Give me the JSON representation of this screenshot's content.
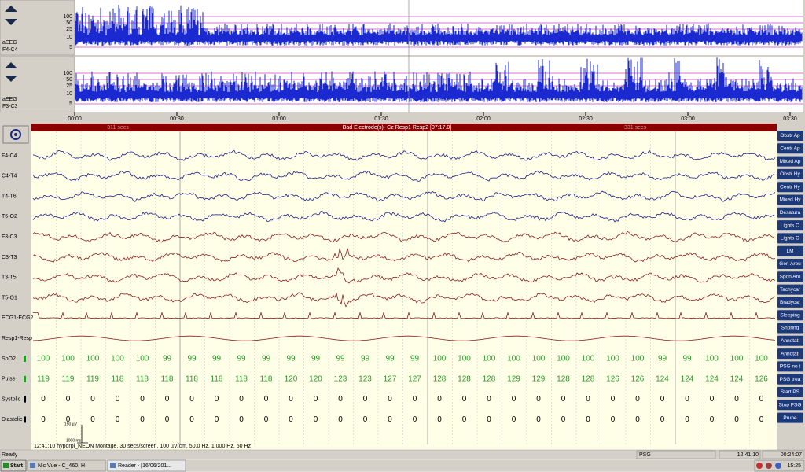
{
  "aeeg": [
    {
      "label": "aEEG",
      "channel": "F4-C4",
      "scale": [
        100,
        50,
        25,
        10,
        5
      ]
    },
    {
      "label": "aEEG",
      "channel": "F3-C3",
      "scale": [
        100,
        50,
        25,
        10,
        5
      ]
    }
  ],
  "time_axis": [
    "00:00",
    "00:30",
    "01:00",
    "01:30",
    "02:00",
    "02:30",
    "03:00",
    "03:30"
  ],
  "banner": {
    "left": "311 secs",
    "center": "Bad Electrode(s)- Cz Resp1 Resp2 [07:17.0]",
    "right": "331 secs"
  },
  "channels": [
    "F4-C4",
    "C4-T4",
    "T4-T6",
    "T6-O2",
    "F3-C3",
    "C3-T3",
    "T3-T5",
    "T5-O1",
    "ECG1-ECG2",
    "Resp1-Resp"
  ],
  "vitals": [
    {
      "label": "SpO2",
      "values": [
        100,
        100,
        100,
        100,
        100,
        99,
        99,
        99,
        99,
        99,
        99,
        99,
        99,
        99,
        99,
        99,
        100,
        100,
        100,
        100,
        100,
        100,
        100,
        100,
        100,
        99,
        99,
        100,
        100,
        100
      ]
    },
    {
      "label": "Pulse",
      "values": [
        119,
        119,
        119,
        118,
        118,
        118,
        118,
        118,
        118,
        118,
        120,
        120,
        123,
        123,
        127,
        127,
        128,
        128,
        128,
        129,
        129,
        128,
        128,
        126,
        126,
        124,
        124,
        124,
        124,
        126
      ]
    },
    {
      "label": "Systolic",
      "values": [
        0,
        0,
        0,
        0,
        0,
        0,
        0,
        0,
        0,
        0,
        0,
        0,
        0,
        0,
        0,
        0,
        0,
        0,
        0,
        0,
        0,
        0,
        0,
        0,
        0,
        0,
        0,
        0,
        0,
        0
      ]
    },
    {
      "label": "Diastolic",
      "values": [
        0,
        0,
        0,
        0,
        0,
        0,
        0,
        0,
        0,
        0,
        0,
        0,
        0,
        0,
        0,
        0,
        0,
        0,
        0,
        0,
        0,
        0,
        0,
        0,
        0,
        0,
        0,
        0,
        0,
        0
      ]
    }
  ],
  "buttons": [
    "Obstr Ap",
    "Centr Ap",
    "Mixed Ap",
    "Obstr Hy",
    "Centr Hy",
    "Mixed Hy",
    "Desatura",
    "Lights O",
    "Lights O",
    "LM",
    "Gen Arou",
    "Spon Aro",
    "Tachycar",
    "Bradycar",
    "Sleeping",
    "Snoring",
    "Annotati",
    "Annotati",
    "PSG no t",
    "PSG trea",
    "Start PS",
    "Stop PSG",
    "Prune"
  ],
  "scale_bar": {
    "amplitude": "150 µV",
    "time": "1000 ms"
  },
  "montage_info": "12:41:10 hyporpl_NEON Montage, 30 secs/screen, 100 µV/cm, 50.0 Hz, 1.000 Hz, 50 Hz",
  "status": {
    "ready": "Ready",
    "mode": "PSG",
    "clock": "12:41:10",
    "elapsed": "00:24:07"
  },
  "taskbar": {
    "start": "Start",
    "tasks": [
      "Nic Vue - C_460, H",
      "Reader - [16/06/201..."
    ],
    "time": "15:25"
  }
}
